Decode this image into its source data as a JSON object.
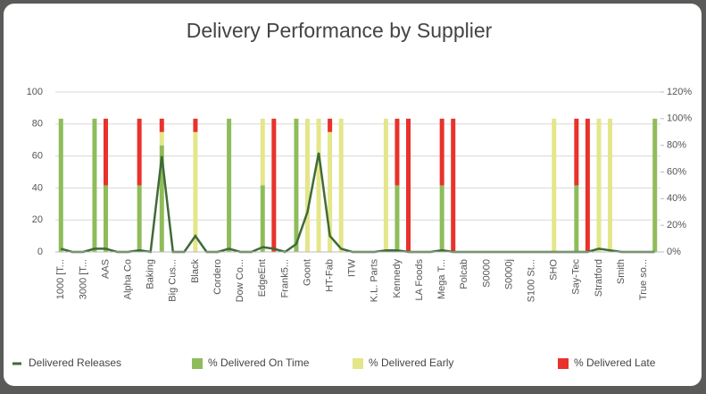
{
  "chart_data": {
    "type": "combo",
    "title": "Delivery Performance by Supplier",
    "categories": [
      "1000 [T...",
      null,
      "3000 [T...",
      null,
      "AAS",
      null,
      "Alpha Co",
      null,
      "Baking",
      null,
      "Big Cus...",
      null,
      "Black",
      null,
      "Cordero",
      null,
      "Dow Co...",
      null,
      "EdgeEnt",
      null,
      "Frank5...",
      null,
      "Goont",
      null,
      "HT-Fab",
      null,
      "ITW",
      null,
      "K.L. Parts",
      null,
      "Kennedy",
      null,
      "LA Foods",
      null,
      "Mega T...",
      null,
      "Polcab",
      null,
      "S0000",
      null,
      "S0000j",
      null,
      "S100 St...",
      null,
      "SHO",
      null,
      "Say-Tec",
      null,
      "Stratford",
      null,
      "Smith",
      null,
      "True so...",
      null
    ],
    "series": [
      {
        "name": "Delivered Releases",
        "type": "line",
        "color": "#3f6b37",
        "values": [
          2,
          0,
          0,
          2,
          2,
          0,
          0,
          1,
          0,
          60,
          0,
          0,
          10,
          0,
          0,
          2,
          0,
          0,
          3,
          2,
          0,
          5,
          25,
          62,
          10,
          2,
          0,
          0,
          0,
          1,
          1,
          0,
          0,
          0,
          1,
          0,
          0,
          0,
          0,
          0,
          0,
          0,
          0,
          0,
          0,
          0,
          0,
          0,
          2,
          1,
          0,
          0,
          0,
          0
        ]
      },
      {
        "name": "% Delivered On Time",
        "type": "bar",
        "axis": "y2",
        "color": "#8fbc5a",
        "values": [
          100,
          0,
          0,
          100,
          50,
          0,
          0,
          50,
          0,
          80,
          0,
          0,
          0,
          0,
          0,
          100,
          0,
          0,
          50,
          0,
          0,
          100,
          0,
          0,
          0,
          0,
          0,
          0,
          0,
          0,
          50,
          0,
          0,
          0,
          50,
          0,
          0,
          0,
          0,
          0,
          0,
          0,
          0,
          0,
          0,
          0,
          50,
          0,
          0,
          0,
          0,
          0,
          0,
          100
        ]
      },
      {
        "name": "% Delivered Early",
        "type": "bar",
        "axis": "y2",
        "color": "#e4e68a",
        "values": [
          0,
          0,
          0,
          0,
          0,
          0,
          0,
          0,
          0,
          10,
          0,
          0,
          90,
          0,
          0,
          0,
          0,
          0,
          50,
          0,
          0,
          0,
          100,
          100,
          90,
          100,
          0,
          0,
          0,
          100,
          0,
          0,
          0,
          0,
          0,
          0,
          0,
          0,
          0,
          0,
          0,
          0,
          0,
          0,
          100,
          0,
          0,
          0,
          100,
          100,
          0,
          0,
          0,
          0
        ]
      },
      {
        "name": "% Delivered Late",
        "type": "bar",
        "axis": "y2",
        "color": "#e8322b",
        "values": [
          0,
          0,
          0,
          0,
          50,
          0,
          0,
          50,
          0,
          10,
          0,
          0,
          10,
          0,
          0,
          0,
          0,
          0,
          0,
          100,
          0,
          0,
          0,
          0,
          10,
          0,
          0,
          0,
          0,
          0,
          50,
          100,
          0,
          0,
          50,
          100,
          0,
          0,
          0,
          0,
          0,
          0,
          0,
          0,
          0,
          0,
          50,
          100,
          0,
          0,
          0,
          0,
          0,
          0
        ]
      }
    ],
    "ylim": [
      0,
      100
    ],
    "yticks": [
      0,
      20,
      40,
      60,
      80,
      100
    ],
    "y2lim": [
      0,
      120
    ],
    "y2ticks": [
      {
        "value": 0,
        "label": "0%"
      },
      {
        "value": 20,
        "label": "20%"
      },
      {
        "value": 40,
        "label": "40%"
      },
      {
        "value": 60,
        "label": "60%"
      },
      {
        "value": 80,
        "label": "80%"
      },
      {
        "value": 100,
        "label": "100%"
      },
      {
        "value": 120,
        "label": "120%"
      }
    ],
    "grid": true,
    "legend": "bottom"
  }
}
